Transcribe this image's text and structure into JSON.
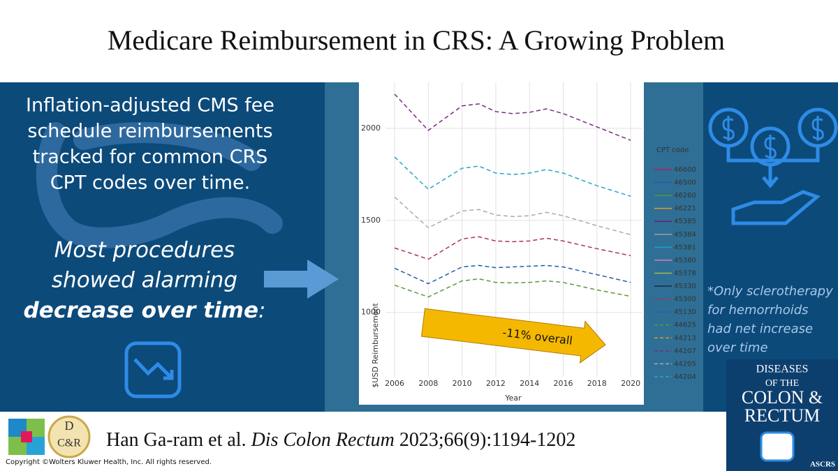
{
  "header": {
    "title": "Medicare Reimbursement in CRS: A Growing Problem"
  },
  "left": {
    "intro": [
      "Inflation-adjusted CMS fee",
      "schedule reimbursements",
      "tracked for common CRS",
      "CPT codes over time."
    ],
    "finding": [
      "Most procedures",
      "showed alarming"
    ],
    "finding_emph": "decrease over time",
    "finding_tail": ":"
  },
  "right": {
    "note": [
      "*Only sclerotherapy",
      "for hemorrhoids",
      "had net increase",
      "over time"
    ]
  },
  "chart_data": {
    "type": "line",
    "xlabel": "Year",
    "ylabel": "$USD Reimbursement",
    "legend_title": "CPT code",
    "legend": "right",
    "grid": true,
    "x": [
      2006,
      2008,
      2010,
      2011,
      2012,
      2013,
      2014,
      2015,
      2016,
      2018,
      2020
    ],
    "xlim": [
      2005.5,
      2020.7
    ],
    "xticks": [
      2006,
      2008,
      2010,
      2012,
      2014,
      2016,
      2018,
      2020
    ],
    "ylim": [
      650,
      2250
    ],
    "yticks": [
      1000,
      1500,
      2000
    ],
    "annotation": "-11% overall",
    "series": [
      {
        "name": "46600",
        "color": "#c2185b",
        "dash": false,
        "values": [
          null,
          null,
          null,
          null,
          null,
          null,
          null,
          null,
          null,
          null,
          null
        ]
      },
      {
        "name": "46500",
        "color": "#1f5fa8",
        "dash": false,
        "values": [
          null,
          null,
          null,
          null,
          null,
          null,
          null,
          null,
          null,
          null,
          null
        ]
      },
      {
        "name": "46260",
        "color": "#4c9a3a",
        "dash": false,
        "values": [
          null,
          null,
          null,
          null,
          null,
          null,
          null,
          null,
          null,
          null,
          null
        ]
      },
      {
        "name": "46221",
        "color": "#e39a1e",
        "dash": false,
        "values": [
          null,
          null,
          null,
          null,
          null,
          null,
          null,
          null,
          null,
          null,
          null
        ]
      },
      {
        "name": "45385",
        "color": "#6a1b7a",
        "dash": false,
        "values": [
          null,
          null,
          null,
          null,
          null,
          null,
          null,
          null,
          null,
          null,
          null
        ]
      },
      {
        "name": "45384",
        "color": "#9e9e9e",
        "dash": false,
        "values": [
          null,
          null,
          null,
          null,
          null,
          null,
          null,
          null,
          null,
          null,
          null
        ]
      },
      {
        "name": "45381",
        "color": "#1aa3c8",
        "dash": false,
        "values": [
          null,
          null,
          null,
          null,
          null,
          null,
          null,
          null,
          null,
          null,
          null
        ]
      },
      {
        "name": "45380",
        "color": "#e07ab0",
        "dash": false,
        "values": [
          null,
          null,
          null,
          null,
          null,
          null,
          null,
          null,
          null,
          null,
          null
        ]
      },
      {
        "name": "45378",
        "color": "#a5b84a",
        "dash": false,
        "values": [
          null,
          null,
          null,
          null,
          null,
          null,
          null,
          null,
          null,
          null,
          null
        ]
      },
      {
        "name": "45330",
        "color": "#1a2a4a",
        "dash": false,
        "values": [
          null,
          null,
          null,
          null,
          null,
          null,
          null,
          null,
          null,
          null,
          null
        ]
      },
      {
        "name": "45300",
        "color": "#b0305a",
        "dash": true,
        "values": [
          1350,
          1289,
          1399,
          1411,
          1388,
          1384,
          1388,
          1403,
          1388,
          1346,
          1308
        ]
      },
      {
        "name": "45130",
        "color": "#1f5fa8",
        "dash": true,
        "values": [
          1240,
          1156,
          1247,
          1255,
          1243,
          1247,
          1251,
          1255,
          1247,
          1205,
          1163
        ]
      },
      {
        "name": "44625",
        "color": "#5a9a3a",
        "dash": true,
        "values": [
          1148,
          1084,
          1171,
          1182,
          1163,
          1160,
          1163,
          1171,
          1163,
          1122,
          1087
        ]
      },
      {
        "name": "44213",
        "color": "#e39a1e",
        "dash": true,
        "values": [
          null,
          null,
          null,
          null,
          null,
          null,
          null,
          null,
          null,
          null,
          null
        ]
      },
      {
        "name": "44207",
        "color": "#7a2a82",
        "dash": true,
        "values": [
          2186,
          1989,
          2122,
          2133,
          2091,
          2080,
          2087,
          2106,
          2080,
          2008,
          1935
        ]
      },
      {
        "name": "44205",
        "color": "#aaaaaa",
        "dash": true,
        "values": [
          1627,
          1460,
          1551,
          1559,
          1529,
          1521,
          1525,
          1544,
          1525,
          1471,
          1422
        ]
      },
      {
        "name": "44204",
        "color": "#22a7c8",
        "dash": true,
        "values": [
          1844,
          1669,
          1783,
          1795,
          1757,
          1749,
          1757,
          1776,
          1757,
          1688,
          1631
        ]
      }
    ]
  },
  "footer": {
    "authors": "Han Ga-ram et al. ",
    "journal": "Dis Colon Rectum",
    "ref": " 2023;66(9):1194-1202",
    "copyright": "Copyright ©Wolters Kluwer Health, Inc. All rights reserved.",
    "logo_d": "D",
    "logo_cr": "C&R",
    "cover": [
      "DISEASES",
      "OF THE",
      "COLON &",
      "RECTUM"
    ],
    "cover_society": "ASCRS"
  }
}
